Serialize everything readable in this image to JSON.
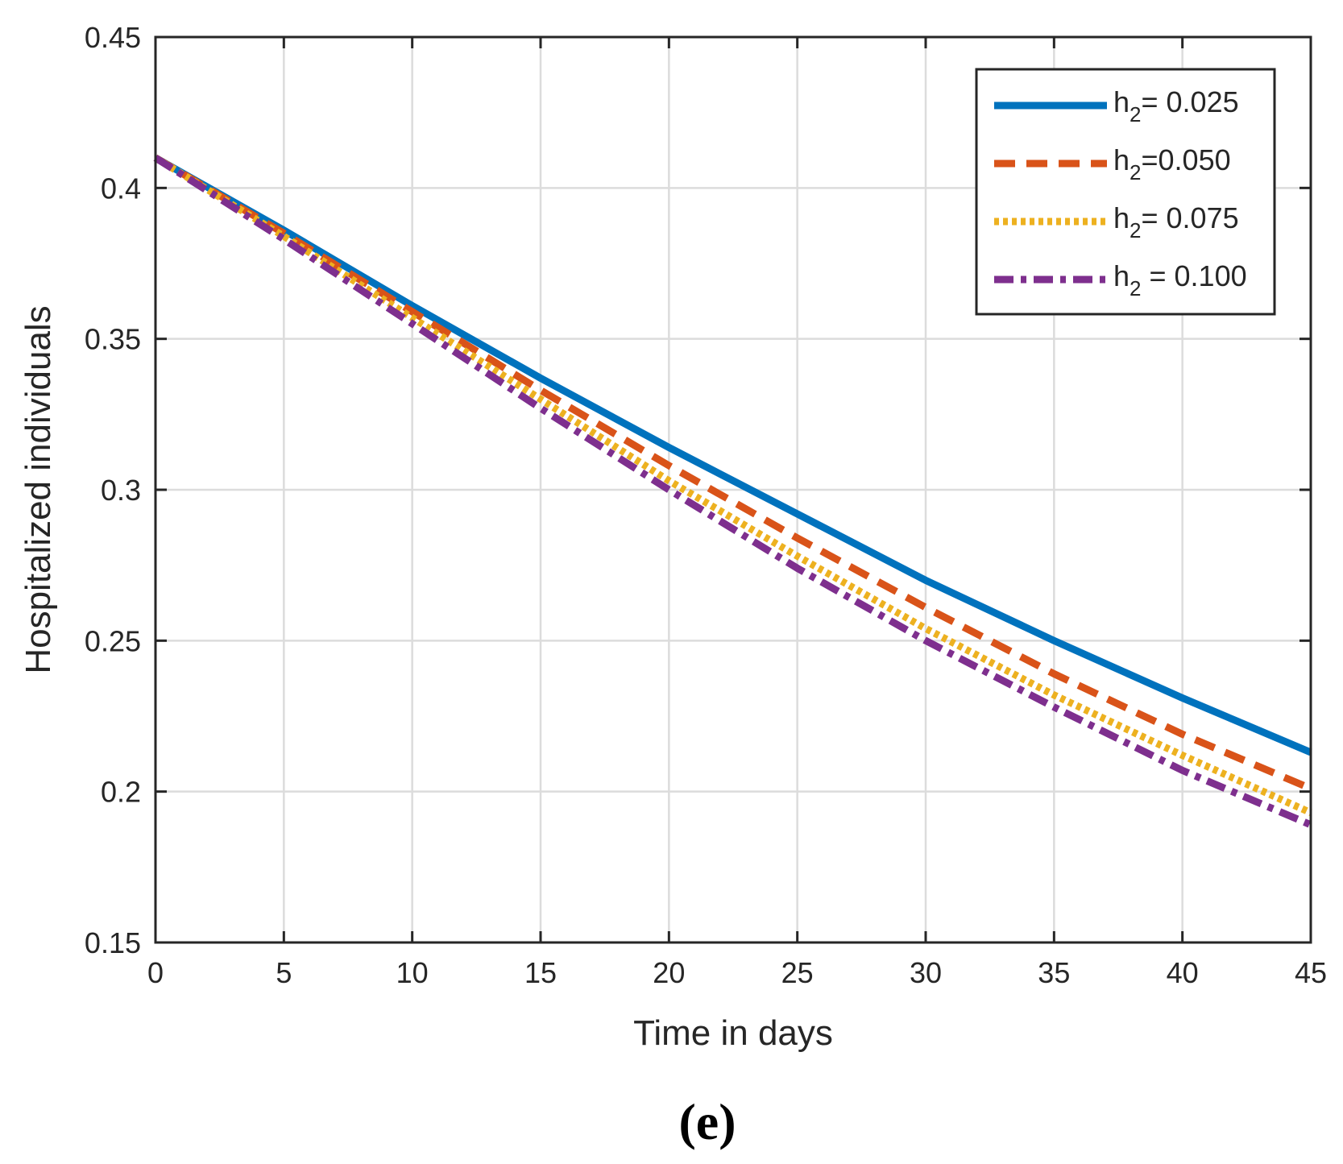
{
  "chart_data": {
    "type": "line",
    "xlabel": "Time in days",
    "ylabel": "Hospitalized individuals",
    "xlim": [
      0,
      45
    ],
    "ylim": [
      0.15,
      0.45
    ],
    "xticks": [
      0,
      5,
      10,
      15,
      20,
      25,
      30,
      35,
      40,
      45
    ],
    "xtick_labels": [
      "0",
      "5",
      "10",
      "15",
      "20",
      "25",
      "30",
      "35",
      "40",
      "45"
    ],
    "yticks": [
      0.15,
      0.2,
      0.25,
      0.3,
      0.35,
      0.4,
      0.45
    ],
    "ytick_labels": [
      "0.15",
      "0.2",
      "0.25",
      "0.3",
      "0.35",
      "0.4",
      "0.45"
    ],
    "grid": true,
    "legend_position": "top-right",
    "x": [
      0,
      5,
      10,
      15,
      20,
      25,
      30,
      35,
      40,
      45
    ],
    "series": [
      {
        "name": "h2= 0.025",
        "legend_prefix": "h",
        "legend_subscript": "2",
        "legend_suffix": "= 0.025",
        "color": "#0072BD",
        "style": "solid",
        "values": [
          0.41,
          0.386,
          0.361,
          0.337,
          0.314,
          0.292,
          0.27,
          0.25,
          0.231,
          0.213
        ]
      },
      {
        "name": "h2=0.050",
        "legend_prefix": "h",
        "legend_subscript": "2",
        "legend_suffix": "=0.050",
        "color": "#D95319",
        "style": "dashed",
        "values": [
          0.41,
          0.385,
          0.359,
          0.333,
          0.308,
          0.284,
          0.261,
          0.239,
          0.219,
          0.201
        ]
      },
      {
        "name": "h2= 0.075",
        "legend_prefix": "h",
        "legend_subscript": "2",
        "legend_suffix": "= 0.075",
        "color": "#EDB120",
        "style": "dotted",
        "values": [
          0.41,
          0.384,
          0.357,
          0.33,
          0.303,
          0.278,
          0.254,
          0.232,
          0.212,
          0.193
        ]
      },
      {
        "name": "h2 = 0.100",
        "legend_prefix": "h",
        "legend_subscript": "2",
        "legend_suffix": " = 0.100",
        "color": "#7E2F8E",
        "style": "dashdot",
        "values": [
          0.41,
          0.383,
          0.355,
          0.327,
          0.3,
          0.274,
          0.25,
          0.228,
          0.207,
          0.189
        ]
      }
    ]
  },
  "panel_label": "(e)"
}
